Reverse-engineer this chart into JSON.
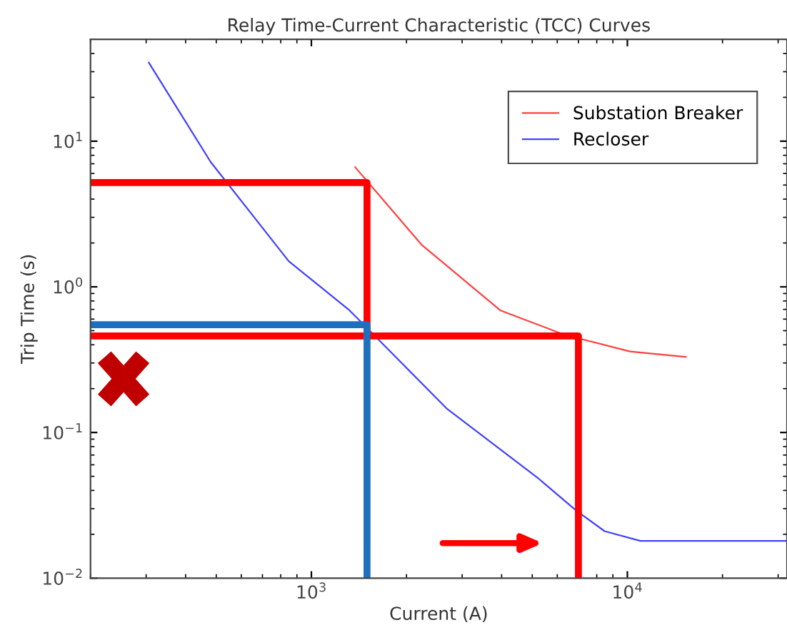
{
  "chart_data": {
    "type": "line",
    "title": "Relay Time-Current Characteristic (TCC) Curves",
    "xlabel": "Current (A)",
    "ylabel": "Trip Time (s)",
    "log": "xy",
    "xlim": [
      200,
      32000
    ],
    "ylim": [
      0.01,
      50
    ],
    "xticks": [
      {
        "value": 1000,
        "label": "10$^{3}$"
      },
      {
        "value": 10000,
        "label": "10$^{4}$"
      }
    ],
    "yticks": [
      {
        "value": 0.01,
        "label": "10$^{−2}$"
      },
      {
        "value": 0.1,
        "label": "10$^{−1}$"
      },
      {
        "value": 1,
        "label": "10$^{0}$"
      },
      {
        "value": 10,
        "label": "10$^{1}$"
      }
    ],
    "grid": false,
    "legend": "top right",
    "series": [
      {
        "name": "Substation Breaker",
        "color": "#ff4040",
        "x": [
          1370,
          2230,
          3960,
          6300,
          10200,
          15400
        ],
        "values": [
          6.7,
          1.95,
          0.69,
          0.47,
          0.36,
          0.33
        ]
      },
      {
        "name": "Recloser",
        "color": "#4040ff",
        "x": [
          305,
          480,
          848,
          1320,
          2690,
          5250,
          6900,
          8470,
          11000,
          32000
        ],
        "values": [
          35,
          7.2,
          1.5,
          0.69,
          0.145,
          0.048,
          0.029,
          0.021,
          0.018,
          0.018
        ]
      },
      {
        "color": "#ff0000",
        "x": [
          200,
          1500,
          1500
        ],
        "values": [
          5.2,
          5.2,
          0.46
        ]
      },
      {
        "color": "#ff0000",
        "x": [
          200,
          7000,
          7000
        ],
        "values": [
          0.46,
          0.46,
          0.01
        ]
      },
      {
        "color": "#1f6fbf",
        "x": [
          200,
          1500,
          1500
        ],
        "values": [
          0.55,
          0.55,
          0.01
        ]
      }
    ]
  }
}
